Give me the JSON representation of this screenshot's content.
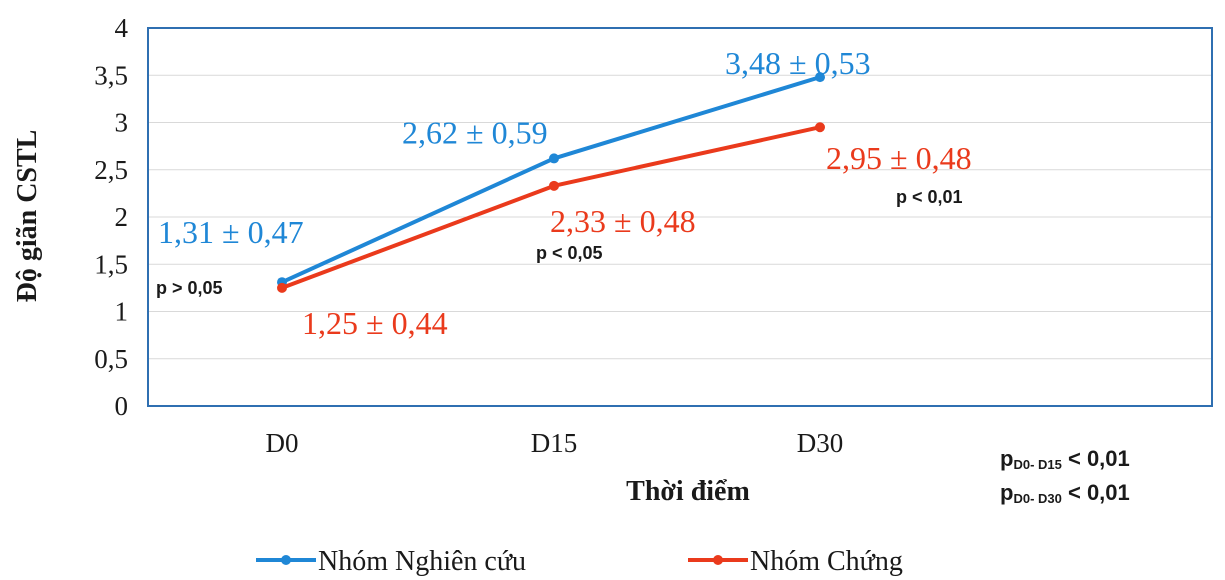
{
  "chart_data": {
    "type": "line",
    "xlabel": "Thời điểm",
    "ylabel": "Độ giãn CSTL",
    "categories": [
      "D0",
      "D15",
      "D30"
    ],
    "ylim": [
      0,
      4
    ],
    "y_ticks": [
      "0",
      "0,5",
      "1",
      "1,5",
      "2",
      "2,5",
      "3",
      "3,5",
      "4"
    ],
    "grid": true,
    "legend_position": "bottom",
    "series": [
      {
        "name": "Nhóm Nghiên cứu",
        "color": "#1f87d6",
        "values": [
          1.31,
          2.62,
          3.48
        ],
        "labels": [
          "1,31 ± 0,47",
          "2,62 ± 0,59",
          "3,48 ± 0,53"
        ]
      },
      {
        "name": "Nhóm Chứng",
        "color": "#ea3a1c",
        "values": [
          1.25,
          2.33,
          2.95
        ],
        "labels": [
          "1,25 ± 0,44",
          "2,33 ± 0,48",
          "2,95 ± 0,48"
        ]
      }
    ],
    "p_values": [
      "p > 0,05",
      "p < 0,05",
      "p < 0,01"
    ],
    "notes": [
      {
        "p": "p",
        "sub": "D0- D15",
        "rest": " < 0,01"
      },
      {
        "p": "p",
        "sub": "D0- D30",
        "rest": " < 0,01"
      }
    ]
  }
}
